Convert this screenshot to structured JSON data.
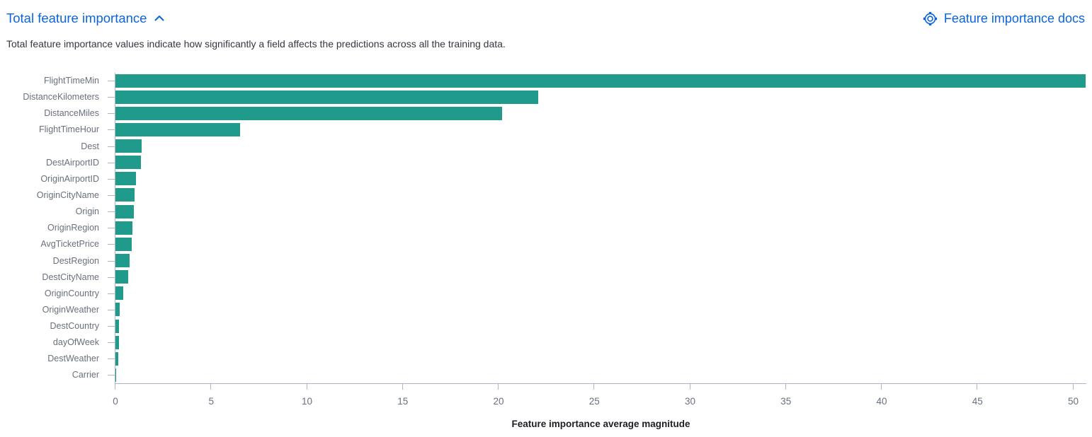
{
  "header": {
    "title": "Total feature importance",
    "docs_link_label": "Feature importance docs"
  },
  "description": "Total feature importance values indicate how significantly a field affects the predictions across all the training data.",
  "colors": {
    "link_blue": "#0b64dd",
    "bar_teal": "#209a8a",
    "axis_line": "#aeb5c4",
    "tick_label": "#69707d",
    "y_label": "#69707d",
    "description_text": "#343741",
    "axis_title_text": "#1d1e24"
  },
  "chart_data": {
    "type": "bar",
    "orientation": "horizontal",
    "xlabel": "Feature importance average magnitude",
    "xlim": [
      0,
      50.7
    ],
    "xticks": [
      0,
      5,
      10,
      15,
      20,
      25,
      30,
      35,
      40,
      45,
      50
    ],
    "grid": false,
    "legend": "none",
    "categories": [
      "FlightTimeMin",
      "DistanceKilometers",
      "DistanceMiles",
      "FlightTimeHour",
      "Dest",
      "DestAirportID",
      "OriginAirportID",
      "OriginCityName",
      "Origin",
      "OriginRegion",
      "AvgTicketPrice",
      "DestRegion",
      "DestCityName",
      "OriginCountry",
      "OriginWeather",
      "DestCountry",
      "dayOfWeek",
      "DestWeather",
      "Carrier"
    ],
    "values": [
      50.66,
      22.08,
      20.19,
      6.51,
      1.37,
      1.32,
      1.08,
      0.98,
      0.95,
      0.9,
      0.86,
      0.74,
      0.67,
      0.41,
      0.22,
      0.2,
      0.17,
      0.15,
      0.05
    ]
  }
}
